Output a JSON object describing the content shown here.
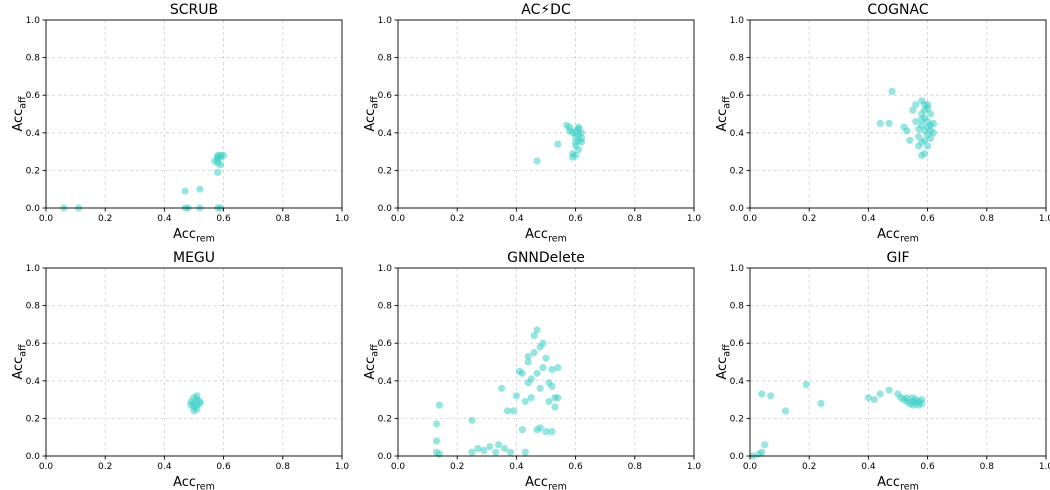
{
  "chart_data": [
    {
      "type": "scatter",
      "title": "SCRUB",
      "xlabel": {
        "base": "Acc",
        "sub": "rem"
      },
      "ylabel": {
        "base": "Acc",
        "sub": "aff"
      },
      "xlim": [
        0,
        1
      ],
      "ylim": [
        0,
        1
      ],
      "xticks": [
        "0.0",
        "0.2",
        "0.4",
        "0.6",
        "0.8",
        "1.0"
      ],
      "yticks": [
        "0.0",
        "0.2",
        "0.4",
        "0.6",
        "0.8",
        "1.0"
      ],
      "grid": true,
      "color": "#40d0c6",
      "points": [
        [
          0.06,
          0.0
        ],
        [
          0.11,
          0.0
        ],
        [
          0.47,
          0.0
        ],
        [
          0.48,
          0.0
        ],
        [
          0.52,
          0.0
        ],
        [
          0.58,
          0.0
        ],
        [
          0.59,
          0.0
        ],
        [
          0.47,
          0.09
        ],
        [
          0.52,
          0.1
        ],
        [
          0.58,
          0.19
        ],
        [
          0.57,
          0.25
        ],
        [
          0.58,
          0.26
        ],
        [
          0.58,
          0.27
        ],
        [
          0.59,
          0.27
        ],
        [
          0.58,
          0.28
        ],
        [
          0.59,
          0.28
        ],
        [
          0.6,
          0.28
        ],
        [
          0.59,
          0.23
        ],
        [
          0.58,
          0.24
        ]
      ]
    },
    {
      "type": "scatter",
      "title": "AC⚡DC",
      "xlabel": {
        "base": "Acc",
        "sub": "rem"
      },
      "ylabel": {
        "base": "Acc",
        "sub": "aff"
      },
      "xlim": [
        0,
        1
      ],
      "ylim": [
        0,
        1
      ],
      "xticks": [
        "0.0",
        "0.2",
        "0.4",
        "0.6",
        "0.8",
        "1.0"
      ],
      "yticks": [
        "0.0",
        "0.2",
        "0.4",
        "0.6",
        "0.8",
        "1.0"
      ],
      "grid": true,
      "color": "#40d0c6",
      "points": [
        [
          0.47,
          0.25
        ],
        [
          0.54,
          0.34
        ],
        [
          0.57,
          0.44
        ],
        [
          0.58,
          0.43
        ],
        [
          0.58,
          0.41
        ],
        [
          0.59,
          0.4
        ],
        [
          0.6,
          0.41
        ],
        [
          0.6,
          0.38
        ],
        [
          0.61,
          0.42
        ],
        [
          0.61,
          0.39
        ],
        [
          0.61,
          0.36
        ],
        [
          0.62,
          0.4
        ],
        [
          0.62,
          0.37
        ],
        [
          0.6,
          0.33
        ],
        [
          0.61,
          0.31
        ],
        [
          0.59,
          0.29
        ],
        [
          0.59,
          0.27
        ],
        [
          0.6,
          0.28
        ],
        [
          0.62,
          0.35
        ],
        [
          0.61,
          0.43
        ],
        [
          0.6,
          0.35
        ]
      ]
    },
    {
      "type": "scatter",
      "title": "COGNAC",
      "xlabel": {
        "base": "Acc",
        "sub": "rem"
      },
      "ylabel": {
        "base": "Acc",
        "sub": "aff"
      },
      "xlim": [
        0,
        1
      ],
      "ylim": [
        0,
        1
      ],
      "xticks": [
        "0.0",
        "0.2",
        "0.4",
        "0.6",
        "0.8",
        "1.0"
      ],
      "yticks": [
        "0.0",
        "0.2",
        "0.4",
        "0.6",
        "0.8",
        "1.0"
      ],
      "grid": true,
      "color": "#40d0c6",
      "points": [
        [
          0.48,
          0.62
        ],
        [
          0.44,
          0.45
        ],
        [
          0.47,
          0.45
        ],
        [
          0.52,
          0.43
        ],
        [
          0.53,
          0.41
        ],
        [
          0.54,
          0.36
        ],
        [
          0.55,
          0.52
        ],
        [
          0.56,
          0.55
        ],
        [
          0.56,
          0.46
        ],
        [
          0.57,
          0.42
        ],
        [
          0.57,
          0.38
        ],
        [
          0.57,
          0.33
        ],
        [
          0.58,
          0.57
        ],
        [
          0.58,
          0.5
        ],
        [
          0.58,
          0.44
        ],
        [
          0.58,
          0.35
        ],
        [
          0.58,
          0.28
        ],
        [
          0.59,
          0.55
        ],
        [
          0.59,
          0.48
        ],
        [
          0.59,
          0.41
        ],
        [
          0.59,
          0.36
        ],
        [
          0.59,
          0.29
        ],
        [
          0.6,
          0.53
        ],
        [
          0.6,
          0.46
        ],
        [
          0.6,
          0.43
        ],
        [
          0.6,
          0.39
        ],
        [
          0.6,
          0.33
        ],
        [
          0.61,
          0.5
        ],
        [
          0.61,
          0.44
        ],
        [
          0.61,
          0.41
        ],
        [
          0.61,
          0.37
        ],
        [
          0.62,
          0.45
        ],
        [
          0.62,
          0.4
        ],
        [
          0.6,
          0.55
        ],
        [
          0.59,
          0.52
        ],
        [
          0.58,
          0.47
        ]
      ]
    },
    {
      "type": "scatter",
      "title": "MEGU",
      "xlabel": {
        "base": "Acc",
        "sub": "rem"
      },
      "ylabel": {
        "base": "Acc",
        "sub": "aff"
      },
      "xlim": [
        0,
        1
      ],
      "ylim": [
        0,
        1
      ],
      "xticks": [
        "0.0",
        "0.2",
        "0.4",
        "0.6",
        "0.8",
        "1.0"
      ],
      "yticks": [
        "0.0",
        "0.2",
        "0.4",
        "0.6",
        "0.8",
        "1.0"
      ],
      "grid": true,
      "color": "#40d0c6",
      "points": [
        [
          0.49,
          0.29
        ],
        [
          0.5,
          0.31
        ],
        [
          0.5,
          0.28
        ],
        [
          0.5,
          0.26
        ],
        [
          0.51,
          0.3
        ],
        [
          0.51,
          0.27
        ],
        [
          0.51,
          0.25
        ],
        [
          0.52,
          0.29
        ],
        [
          0.52,
          0.28
        ],
        [
          0.5,
          0.24
        ],
        [
          0.51,
          0.32
        ],
        [
          0.49,
          0.27
        ]
      ]
    },
    {
      "type": "scatter",
      "title": "GNNDelete",
      "xlabel": {
        "base": "Acc",
        "sub": "rem"
      },
      "ylabel": {
        "base": "Acc",
        "sub": "aff"
      },
      "xlim": [
        0,
        1
      ],
      "ylim": [
        0,
        1
      ],
      "xticks": [
        "0.0",
        "0.2",
        "0.4",
        "0.6",
        "0.8",
        "1.0"
      ],
      "yticks": [
        "0.0",
        "0.2",
        "0.4",
        "0.6",
        "0.8",
        "1.0"
      ],
      "grid": true,
      "color": "#40d0c6",
      "points": [
        [
          0.14,
          0.27
        ],
        [
          0.13,
          0.17
        ],
        [
          0.13,
          0.08
        ],
        [
          0.13,
          0.02
        ],
        [
          0.14,
          0.01
        ],
        [
          0.25,
          0.19
        ],
        [
          0.25,
          0.02
        ],
        [
          0.27,
          0.04
        ],
        [
          0.29,
          0.03
        ],
        [
          0.31,
          0.05
        ],
        [
          0.33,
          0.02
        ],
        [
          0.34,
          0.06
        ],
        [
          0.35,
          0.36
        ],
        [
          0.36,
          0.04
        ],
        [
          0.37,
          0.24
        ],
        [
          0.38,
          0.02
        ],
        [
          0.39,
          0.24
        ],
        [
          0.4,
          0.32
        ],
        [
          0.41,
          0.45
        ],
        [
          0.42,
          0.44
        ],
        [
          0.42,
          0.14
        ],
        [
          0.43,
          0.29
        ],
        [
          0.43,
          0.02
        ],
        [
          0.44,
          0.39
        ],
        [
          0.44,
          0.5
        ],
        [
          0.45,
          0.41
        ],
        [
          0.45,
          0.31
        ],
        [
          0.46,
          0.55
        ],
        [
          0.46,
          0.64
        ],
        [
          0.47,
          0.67
        ],
        [
          0.47,
          0.44
        ],
        [
          0.47,
          0.14
        ],
        [
          0.48,
          0.58
        ],
        [
          0.48,
          0.36
        ],
        [
          0.49,
          0.47
        ],
        [
          0.49,
          0.6
        ],
        [
          0.5,
          0.52
        ],
        [
          0.5,
          0.13
        ],
        [
          0.51,
          0.39
        ],
        [
          0.51,
          0.29
        ],
        [
          0.52,
          0.46
        ],
        [
          0.52,
          0.37
        ],
        [
          0.52,
          0.13
        ],
        [
          0.53,
          0.31
        ],
        [
          0.53,
          0.26
        ],
        [
          0.54,
          0.47
        ],
        [
          0.54,
          0.31
        ],
        [
          0.44,
          0.53
        ],
        [
          0.48,
          0.15
        ]
      ]
    },
    {
      "type": "scatter",
      "title": "GIF",
      "xlabel": {
        "base": "Acc",
        "sub": "rem"
      },
      "ylabel": {
        "base": "Acc",
        "sub": "aff"
      },
      "xlim": [
        0,
        1
      ],
      "ylim": [
        0,
        1
      ],
      "xticks": [
        "0.0",
        "0.2",
        "0.4",
        "0.6",
        "0.8",
        "1.0"
      ],
      "yticks": [
        "0.0",
        "0.2",
        "0.4",
        "0.6",
        "0.8",
        "1.0"
      ],
      "grid": true,
      "color": "#40d0c6",
      "points": [
        [
          0.01,
          0.0
        ],
        [
          0.03,
          0.01
        ],
        [
          0.04,
          0.02
        ],
        [
          0.05,
          0.06
        ],
        [
          0.04,
          0.33
        ],
        [
          0.07,
          0.32
        ],
        [
          0.12,
          0.24
        ],
        [
          0.19,
          0.38
        ],
        [
          0.24,
          0.28
        ],
        [
          0.4,
          0.31
        ],
        [
          0.42,
          0.3
        ],
        [
          0.44,
          0.33
        ],
        [
          0.47,
          0.35
        ],
        [
          0.5,
          0.33
        ],
        [
          0.51,
          0.31
        ],
        [
          0.52,
          0.3
        ],
        [
          0.53,
          0.29
        ],
        [
          0.54,
          0.28
        ],
        [
          0.55,
          0.31
        ],
        [
          0.55,
          0.27
        ],
        [
          0.56,
          0.3
        ],
        [
          0.56,
          0.28
        ],
        [
          0.57,
          0.29
        ],
        [
          0.57,
          0.27
        ],
        [
          0.58,
          0.3
        ],
        [
          0.58,
          0.28
        ],
        [
          0.55,
          0.29
        ],
        [
          0.53,
          0.31
        ]
      ]
    }
  ]
}
